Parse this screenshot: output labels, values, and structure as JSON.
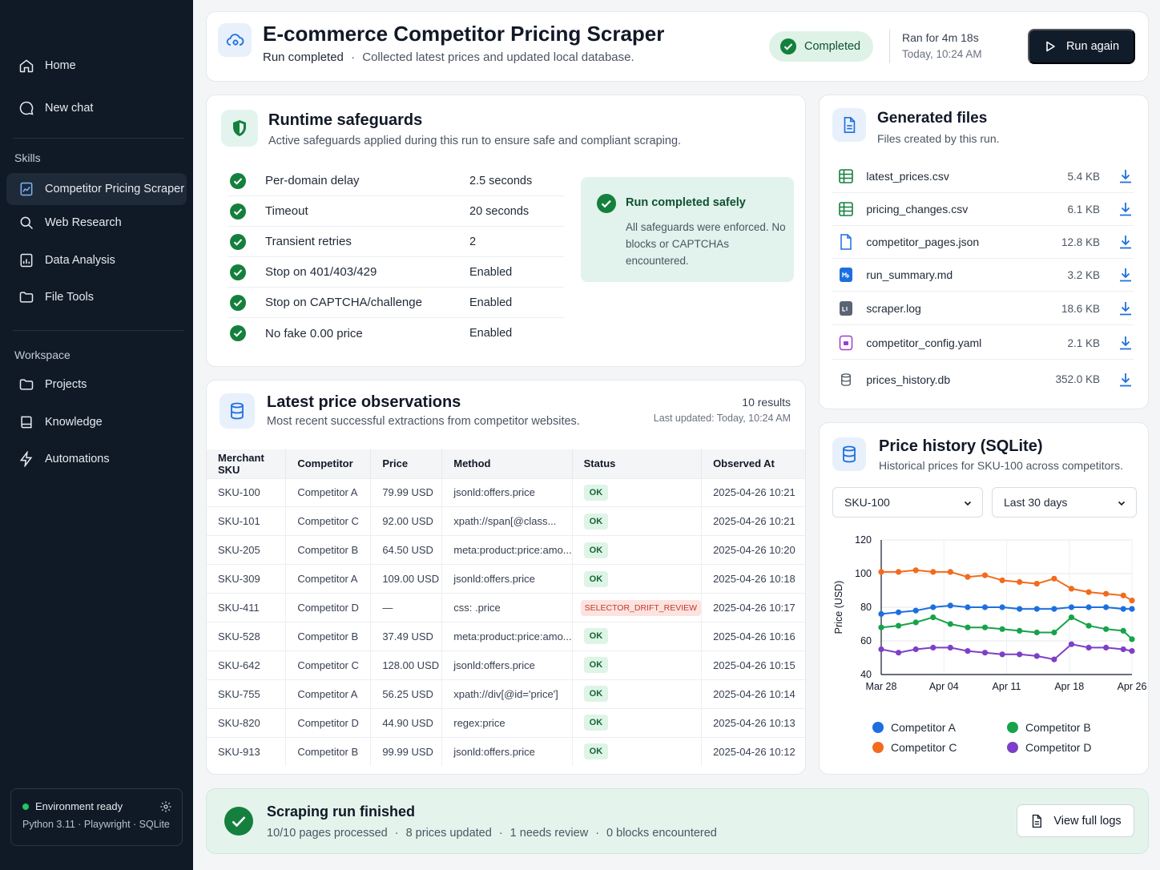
{
  "sidebar": {
    "nav": [
      {
        "label": "Home",
        "icon": "home-icon"
      },
      {
        "label": "New chat",
        "icon": "chat-icon"
      }
    ],
    "skills_label": "Skills",
    "skills": [
      {
        "label": "Competitor Pricing Scraper",
        "icon": "chart-file-icon",
        "active": true
      },
      {
        "label": "Web Research",
        "icon": "search-icon"
      },
      {
        "label": "Data Analysis",
        "icon": "chart-icon"
      },
      {
        "label": "File Tools",
        "icon": "folder-icon"
      }
    ],
    "workspace_label": "Workspace",
    "workspace": [
      {
        "label": "Projects",
        "icon": "folder-icon"
      },
      {
        "label": "Knowledge",
        "icon": "book-icon"
      },
      {
        "label": "Automations",
        "icon": "bolt-icon"
      }
    ],
    "env": {
      "status": "Environment ready",
      "details": "Python 3.11 · Playwright · SQLite"
    }
  },
  "header": {
    "title": "E-commerce Competitor Pricing Scraper",
    "subtitle_strong": "Run completed",
    "subtitle_sep": "·",
    "subtitle": "Collected latest prices and updated local database.",
    "status": "Completed",
    "ran_for": "Ran for 4m 18s",
    "ran_time": "Today, 10:24 AM",
    "run_again": "Run again"
  },
  "safeguards": {
    "title": "Runtime safeguards",
    "subtitle": "Active safeguards applied during this run to ensure safe and compliant scraping.",
    "rows": [
      {
        "label": "Per-domain delay",
        "value": "2.5 seconds"
      },
      {
        "label": "Timeout",
        "value": "20 seconds"
      },
      {
        "label": "Transient retries",
        "value": "2"
      },
      {
        "label": "Stop on 401/403/429",
        "value": "Enabled"
      },
      {
        "label": "Stop on CAPTCHA/challenge",
        "value": "Enabled"
      },
      {
        "label": "No fake 0.00 price",
        "value": "Enabled"
      }
    ],
    "safe_title": "Run completed safely",
    "safe_text": "All safeguards were enforced. No blocks or CAPTCHAs encountered."
  },
  "files": {
    "title": "Generated files",
    "subtitle": "Files created by this run.",
    "items": [
      {
        "name": "latest_prices.csv",
        "size": "5.4 KB",
        "icon": "csv-icon"
      },
      {
        "name": "pricing_changes.csv",
        "size": "6.1 KB",
        "icon": "csv-icon"
      },
      {
        "name": "competitor_pages.json",
        "size": "12.8 KB",
        "icon": "json-file-icon"
      },
      {
        "name": "run_summary.md",
        "size": "3.2 KB",
        "icon": "markdown-file-icon"
      },
      {
        "name": "scraper.log",
        "size": "18.6 KB",
        "icon": "log-file-icon"
      },
      {
        "name": "competitor_config.yaml",
        "size": "2.1 KB",
        "icon": "yaml-file-icon"
      },
      {
        "name": "prices_history.db",
        "size": "352.0 KB",
        "icon": "database-icon"
      }
    ]
  },
  "observations": {
    "title": "Latest price observations",
    "subtitle": "Most recent successful extractions from competitor websites.",
    "count": "10 results",
    "updated": "Last updated: Today, 10:24 AM",
    "columns": [
      "Merchant SKU",
      "Competitor",
      "Price",
      "Method",
      "Status",
      "Observed At"
    ],
    "rows": [
      [
        "SKU-100",
        "Competitor A",
        "79.99 USD",
        "jsonld:offers.price",
        "OK",
        "2025-04-26 10:21"
      ],
      [
        "SKU-101",
        "Competitor C",
        "92.00 USD",
        "xpath://span[@class...",
        "OK",
        "2025-04-26 10:21"
      ],
      [
        "SKU-205",
        "Competitor B",
        "64.50 USD",
        "meta:product:price:amo...",
        "OK",
        "2025-04-26 10:20"
      ],
      [
        "SKU-309",
        "Competitor A",
        "109.00 USD",
        "jsonld:offers.price",
        "OK",
        "2025-04-26 10:18"
      ],
      [
        "SKU-411",
        "Competitor D",
        "—",
        "css: .price",
        "SELECTOR_DRIFT_REVIEW",
        "2025-04-26 10:17"
      ],
      [
        "SKU-528",
        "Competitor B",
        "37.49 USD",
        "meta:product:price:amo...",
        "OK",
        "2025-04-26 10:16"
      ],
      [
        "SKU-642",
        "Competitor C",
        "128.00 USD",
        "jsonld:offers.price",
        "OK",
        "2025-04-26 10:15"
      ],
      [
        "SKU-755",
        "Competitor A",
        "56.25 USD",
        "xpath://div[@id='price']",
        "OK",
        "2025-04-26 10:14"
      ],
      [
        "SKU-820",
        "Competitor D",
        "44.90 USD",
        "regex:price",
        "OK",
        "2025-04-26 10:13"
      ],
      [
        "SKU-913",
        "Competitor B",
        "99.99 USD",
        "jsonld:offers.price",
        "OK",
        "2025-04-26 10:12"
      ]
    ]
  },
  "history": {
    "title": "Price history (SQLite)",
    "subtitle": "Historical prices for SKU-100 across competitors.",
    "sku_select": "SKU-100",
    "range_select": "Last 30 days"
  },
  "chart_data": {
    "type": "line",
    "ylabel": "Price (USD)",
    "ylim": [
      40,
      120
    ],
    "yticks": [
      40,
      60,
      80,
      100,
      120
    ],
    "xlabels": [
      "Mar 28",
      "Apr 04",
      "Apr 11",
      "Apr 18",
      "Apr 26"
    ],
    "xlim": [
      0,
      29
    ],
    "x": [
      0,
      2,
      4,
      6,
      8,
      10,
      12,
      14,
      16,
      18,
      20,
      22,
      24,
      26,
      28,
      29
    ],
    "grid": true,
    "legend": "bottom",
    "series": [
      {
        "name": "Competitor A",
        "color": "#1d6fe0",
        "values": [
          76,
          77,
          78,
          80,
          81,
          80,
          80,
          80,
          79,
          79,
          79,
          80,
          80,
          80,
          79,
          79
        ]
      },
      {
        "name": "Competitor B",
        "color": "#16a34a",
        "values": [
          68,
          69,
          71,
          74,
          70,
          68,
          68,
          67,
          66,
          65,
          65,
          74,
          69,
          67,
          66,
          61
        ]
      },
      {
        "name": "Competitor C",
        "color": "#f26b1d",
        "values": [
          101,
          101,
          102,
          101,
          101,
          98,
          99,
          96,
          95,
          94,
          97,
          91,
          89,
          88,
          87,
          84
        ]
      },
      {
        "name": "Competitor D",
        "color": "#7e3fc8",
        "values": [
          55,
          53,
          55,
          56,
          56,
          54,
          53,
          52,
          52,
          51,
          49,
          58,
          56,
          56,
          55,
          54
        ]
      }
    ]
  },
  "banner": {
    "title": "Scraping run finished",
    "stats": [
      "10/10 pages processed",
      "8 prices updated",
      "1 needs review",
      "0 blocks encountered"
    ],
    "sep": "·",
    "logs_button": "View full logs"
  }
}
